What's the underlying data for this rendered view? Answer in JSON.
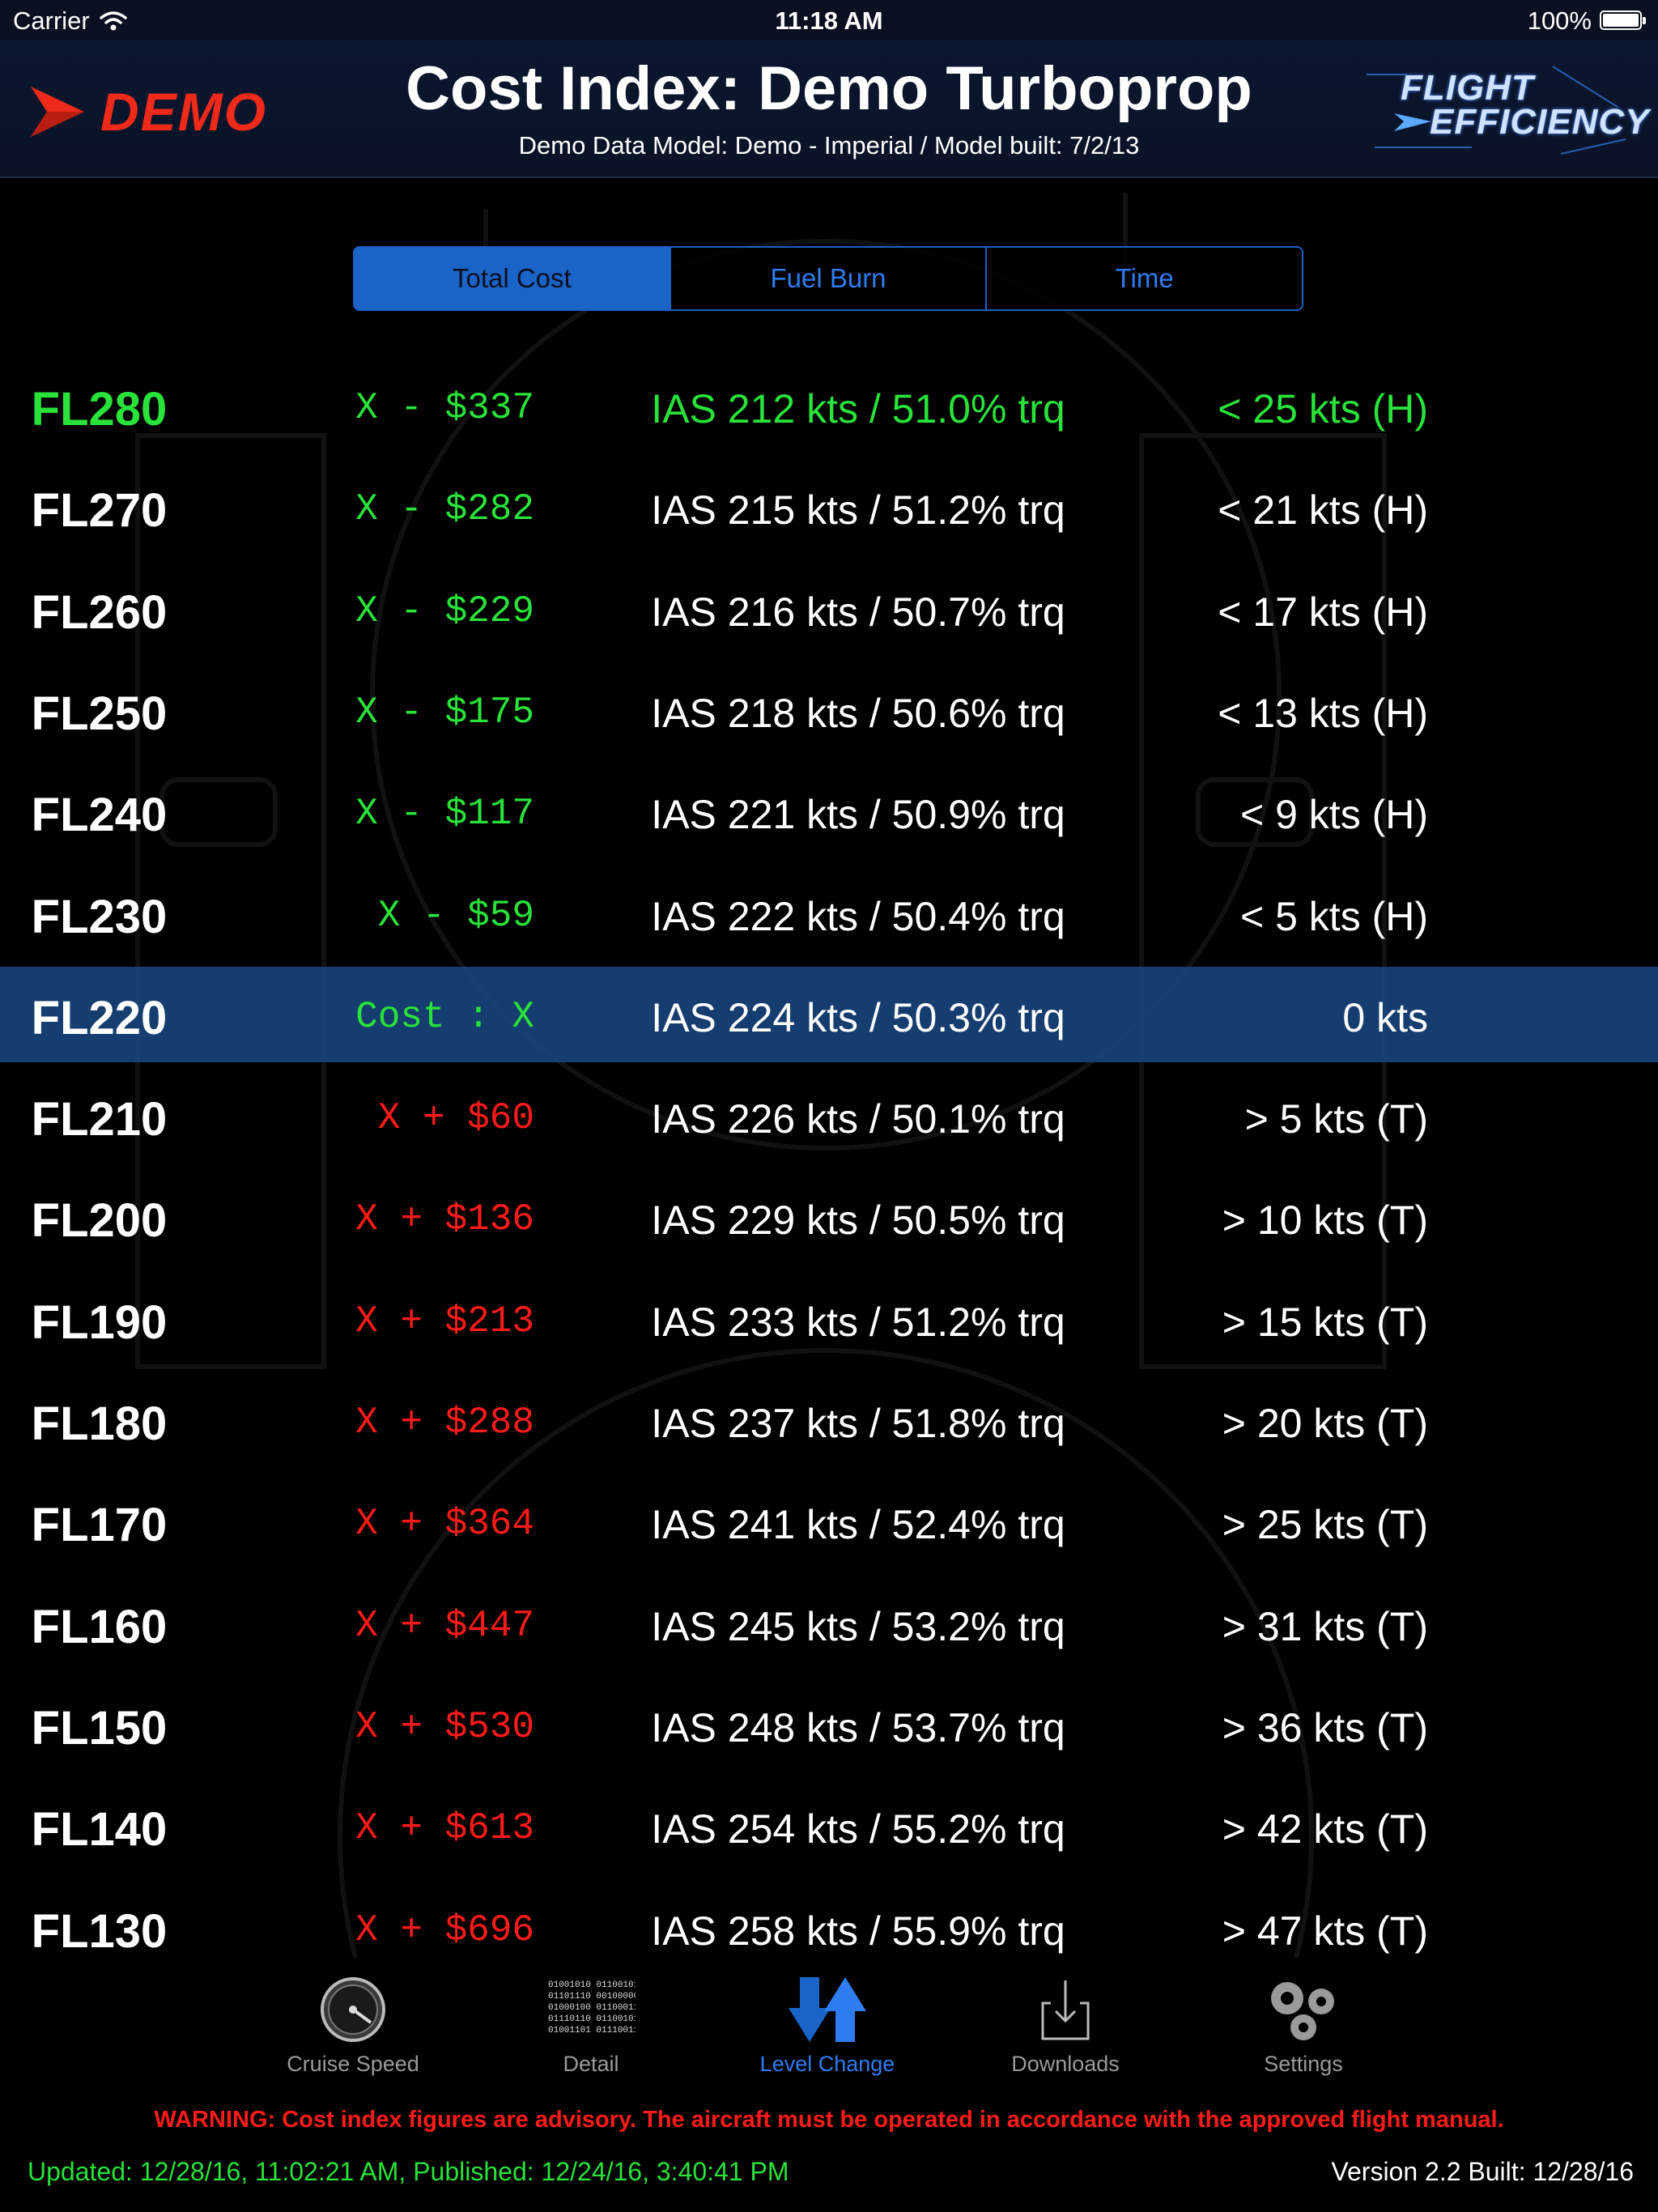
{
  "status_bar": {
    "carrier": "Carrier",
    "time": "11:18 AM",
    "battery": "100%",
    "wifi_icon": "wifi-icon",
    "battery_icon": "battery-icon"
  },
  "header": {
    "demo_label": "DEMO",
    "title": "Cost Index: Demo Turboprop",
    "subtitle": "Demo Data Model: Demo - Imperial / Model built: 7/2/13",
    "brand_line1": "FLIGHT",
    "brand_line2": "EFFICIENCY",
    "brand_color": "#ee2a1a"
  },
  "segments": [
    {
      "label": "Total Cost",
      "active": true
    },
    {
      "label": "Fuel Burn",
      "active": false
    },
    {
      "label": "Time",
      "active": false
    }
  ],
  "colors": {
    "green": "#29e23a",
    "red": "#ff1a1a",
    "accent_blue": "#2f7cf0",
    "selected_row": "#194882"
  },
  "rows": [
    {
      "fl": "FL280",
      "cost": "X - $337",
      "ias": "IAS 212 kts / 51.0% trq",
      "wind": "< 25 kts (H)",
      "cost_color": "green",
      "text_color": "green",
      "selected": false
    },
    {
      "fl": "FL270",
      "cost": "X - $282",
      "ias": "IAS 215 kts / 51.2% trq",
      "wind": "< 21 kts (H)",
      "cost_color": "green",
      "text_color": "white",
      "selected": false
    },
    {
      "fl": "FL260",
      "cost": "X - $229",
      "ias": "IAS 216 kts / 50.7% trq",
      "wind": "< 17 kts (H)",
      "cost_color": "green",
      "text_color": "white",
      "selected": false
    },
    {
      "fl": "FL250",
      "cost": "X - $175",
      "ias": "IAS 218 kts / 50.6% trq",
      "wind": "< 13 kts (H)",
      "cost_color": "green",
      "text_color": "white",
      "selected": false
    },
    {
      "fl": "FL240",
      "cost": "X - $117",
      "ias": "IAS 221 kts / 50.9% trq",
      "wind": "< 9 kts (H)",
      "cost_color": "green",
      "text_color": "white",
      "selected": false
    },
    {
      "fl": "FL230",
      "cost": "X - $59",
      "ias": "IAS 222 kts / 50.4% trq",
      "wind": "< 5 kts (H)",
      "cost_color": "green",
      "text_color": "white",
      "selected": false
    },
    {
      "fl": "FL220",
      "cost": "Cost : X",
      "ias": "IAS 224 kts / 50.3% trq",
      "wind": "0 kts",
      "cost_color": "green",
      "text_color": "white",
      "selected": true
    },
    {
      "fl": "FL210",
      "cost": "X + $60",
      "ias": "IAS 226 kts / 50.1% trq",
      "wind": "> 5 kts (T)",
      "cost_color": "red",
      "text_color": "white",
      "selected": false
    },
    {
      "fl": "FL200",
      "cost": "X + $136",
      "ias": "IAS 229 kts / 50.5% trq",
      "wind": "> 10 kts (T)",
      "cost_color": "red",
      "text_color": "white",
      "selected": false
    },
    {
      "fl": "FL190",
      "cost": "X + $213",
      "ias": "IAS 233 kts / 51.2% trq",
      "wind": "> 15 kts (T)",
      "cost_color": "red",
      "text_color": "white",
      "selected": false
    },
    {
      "fl": "FL180",
      "cost": "X + $288",
      "ias": "IAS 237 kts / 51.8% trq",
      "wind": "> 20 kts (T)",
      "cost_color": "red",
      "text_color": "white",
      "selected": false
    },
    {
      "fl": "FL170",
      "cost": "X + $364",
      "ias": "IAS 241 kts / 52.4% trq",
      "wind": "> 25 kts (T)",
      "cost_color": "red",
      "text_color": "white",
      "selected": false
    },
    {
      "fl": "FL160",
      "cost": "X + $447",
      "ias": "IAS 245 kts / 53.2% trq",
      "wind": "> 31 kts (T)",
      "cost_color": "red",
      "text_color": "white",
      "selected": false
    },
    {
      "fl": "FL150",
      "cost": "X + $530",
      "ias": "IAS 248 kts / 53.7% trq",
      "wind": "> 36 kts (T)",
      "cost_color": "red",
      "text_color": "white",
      "selected": false
    },
    {
      "fl": "FL140",
      "cost": "X + $613",
      "ias": "IAS 254 kts / 55.2% trq",
      "wind": "> 42 kts (T)",
      "cost_color": "red",
      "text_color": "white",
      "selected": false
    },
    {
      "fl": "FL130",
      "cost": "X + $696",
      "ias": "IAS 258 kts / 55.9% trq",
      "wind": "> 47 kts (T)",
      "cost_color": "red",
      "text_color": "white",
      "selected": false
    }
  ],
  "tabs": [
    {
      "label": "Cruise Speed",
      "icon": "speedometer-icon",
      "active": false
    },
    {
      "label": "Detail",
      "icon": "binary-data-icon",
      "active": false
    },
    {
      "label": "Level Change",
      "icon": "up-down-arrows-icon",
      "active": true
    },
    {
      "label": "Downloads",
      "icon": "download-tray-icon",
      "active": false
    },
    {
      "label": "Settings",
      "icon": "gears-icon",
      "active": false
    }
  ],
  "footer": {
    "warning": "WARNING: Cost index figures are advisory.  The aircraft must be operated in accordance with the approved flight manual.",
    "updated": "Updated: 12/28/16, 11:02:21 AM, Published: 12/24/16, 3:40:41 PM",
    "version": "Version 2.2 Built: 12/28/16"
  }
}
